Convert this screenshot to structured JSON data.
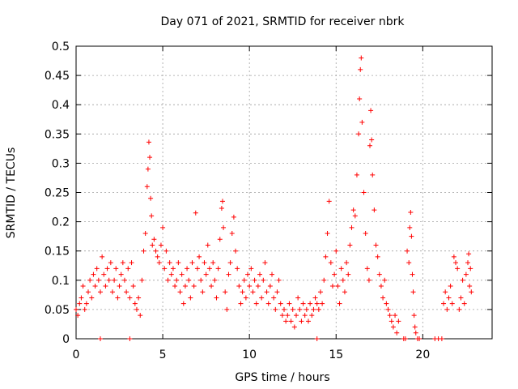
{
  "chart_data": {
    "type": "scatter",
    "title": "Day 071 of 2021, SRMTID for receiver nbrk",
    "xlabel": "GPS time / hours",
    "ylabel": "SRMTID / TECUs",
    "xlim": [
      0,
      24
    ],
    "ylim": [
      0,
      0.5
    ],
    "xticks": [
      0,
      5,
      10,
      15,
      20
    ],
    "xtick_labels": [
      "0",
      "5",
      "10",
      "15",
      "20"
    ],
    "yticks": [
      0,
      0.05,
      0.1,
      0.15,
      0.2,
      0.25,
      0.3,
      0.35,
      0.4,
      0.45,
      0.5
    ],
    "ytick_labels": [
      "0",
      "0.05",
      "0.1",
      "0.15",
      "0.2",
      "0.25",
      "0.3",
      "0.35",
      "0.4",
      "0.45",
      "0.5"
    ],
    "grid": true,
    "marker": "+",
    "color": "#ff0000",
    "series": [
      {
        "name": "SRMTID",
        "points": [
          [
            0.0,
            0.05
          ],
          [
            0.1,
            0.04
          ],
          [
            0.2,
            0.06
          ],
          [
            0.3,
            0.07
          ],
          [
            0.4,
            0.09
          ],
          [
            0.5,
            0.05
          ],
          [
            0.6,
            0.06
          ],
          [
            0.7,
            0.08
          ],
          [
            0.8,
            0.1
          ],
          [
            0.9,
            0.07
          ],
          [
            1.0,
            0.11
          ],
          [
            1.1,
            0.09
          ],
          [
            1.2,
            0.12
          ],
          [
            1.3,
            0.1
          ],
          [
            1.4,
            0.08
          ],
          [
            1.5,
            0.14
          ],
          [
            1.6,
            0.11
          ],
          [
            1.7,
            0.09
          ],
          [
            1.8,
            0.12
          ],
          [
            1.9,
            0.1
          ],
          [
            2.0,
            0.13
          ],
          [
            2.1,
            0.08
          ],
          [
            2.2,
            0.1
          ],
          [
            2.3,
            0.12
          ],
          [
            2.4,
            0.07
          ],
          [
            2.5,
            0.09
          ],
          [
            2.6,
            0.11
          ],
          [
            2.7,
            0.13
          ],
          [
            2.8,
            0.1
          ],
          [
            2.9,
            0.08
          ],
          [
            3.0,
            0.12
          ],
          [
            3.1,
            0.07
          ],
          [
            3.2,
            0.13
          ],
          [
            3.3,
            0.09
          ],
          [
            3.4,
            0.06
          ],
          [
            3.5,
            0.05
          ],
          [
            3.6,
            0.07
          ],
          [
            3.7,
            0.04
          ],
          [
            3.8,
            0.1
          ],
          [
            3.9,
            0.15
          ],
          [
            4.0,
            0.18
          ],
          [
            4.1,
            0.26
          ],
          [
            4.15,
            0.29
          ],
          [
            4.2,
            0.336
          ],
          [
            4.25,
            0.31
          ],
          [
            4.3,
            0.24
          ],
          [
            4.35,
            0.21
          ],
          [
            4.4,
            0.16
          ],
          [
            4.5,
            0.17
          ],
          [
            4.6,
            0.15
          ],
          [
            4.7,
            0.14
          ],
          [
            4.8,
            0.13
          ],
          [
            4.9,
            0.16
          ],
          [
            5.0,
            0.19
          ],
          [
            5.1,
            0.12
          ],
          [
            5.2,
            0.15
          ],
          [
            5.3,
            0.1
          ],
          [
            5.4,
            0.13
          ],
          [
            5.5,
            0.11
          ],
          [
            5.6,
            0.12
          ],
          [
            5.7,
            0.09
          ],
          [
            5.8,
            0.1
          ],
          [
            5.9,
            0.13
          ],
          [
            6.0,
            0.08
          ],
          [
            6.1,
            0.11
          ],
          [
            6.2,
            0.06
          ],
          [
            6.3,
            0.09
          ],
          [
            6.4,
            0.12
          ],
          [
            6.5,
            0.1
          ],
          [
            6.6,
            0.07
          ],
          [
            6.7,
            0.13
          ],
          [
            6.8,
            0.09
          ],
          [
            6.9,
            0.215
          ],
          [
            7.0,
            0.12
          ],
          [
            7.1,
            0.14
          ],
          [
            7.2,
            0.1
          ],
          [
            7.3,
            0.08
          ],
          [
            7.4,
            0.13
          ],
          [
            7.5,
            0.11
          ],
          [
            7.6,
            0.16
          ],
          [
            7.7,
            0.12
          ],
          [
            7.8,
            0.09
          ],
          [
            7.9,
            0.13
          ],
          [
            8.0,
            0.1
          ],
          [
            8.1,
            0.07
          ],
          [
            8.2,
            0.12
          ],
          [
            8.3,
            0.17
          ],
          [
            8.4,
            0.223
          ],
          [
            8.45,
            0.235
          ],
          [
            8.5,
            0.19
          ],
          [
            8.6,
            0.08
          ],
          [
            8.7,
            0.05
          ],
          [
            8.8,
            0.11
          ],
          [
            8.9,
            0.13
          ],
          [
            9.0,
            0.18
          ],
          [
            9.1,
            0.208
          ],
          [
            9.2,
            0.15
          ],
          [
            9.3,
            0.12
          ],
          [
            9.4,
            0.09
          ],
          [
            9.5,
            0.06
          ],
          [
            9.6,
            0.08
          ],
          [
            9.7,
            0.1
          ],
          [
            9.8,
            0.07
          ],
          [
            9.9,
            0.11
          ],
          [
            10.0,
            0.09
          ],
          [
            10.1,
            0.12
          ],
          [
            10.2,
            0.08
          ],
          [
            10.3,
            0.1
          ],
          [
            10.4,
            0.06
          ],
          [
            10.5,
            0.09
          ],
          [
            10.6,
            0.11
          ],
          [
            10.7,
            0.07
          ],
          [
            10.8,
            0.1
          ],
          [
            10.9,
            0.13
          ],
          [
            11.0,
            0.08
          ],
          [
            11.1,
            0.06
          ],
          [
            11.2,
            0.09
          ],
          [
            11.3,
            0.11
          ],
          [
            11.4,
            0.07
          ],
          [
            11.5,
            0.05
          ],
          [
            11.6,
            0.08
          ],
          [
            11.7,
            0.1
          ],
          [
            11.8,
            0.06
          ],
          [
            11.9,
            0.04
          ],
          [
            12.0,
            0.05
          ],
          [
            12.1,
            0.03
          ],
          [
            12.2,
            0.04
          ],
          [
            12.3,
            0.06
          ],
          [
            12.4,
            0.03
          ],
          [
            12.5,
            0.05
          ],
          [
            12.6,
            0.02
          ],
          [
            12.7,
            0.04
          ],
          [
            12.8,
            0.07
          ],
          [
            12.9,
            0.05
          ],
          [
            13.0,
            0.03
          ],
          [
            13.1,
            0.06
          ],
          [
            13.2,
            0.04
          ],
          [
            13.3,
            0.05
          ],
          [
            13.4,
            0.03
          ],
          [
            13.5,
            0.06
          ],
          [
            13.6,
            0.04
          ],
          [
            13.7,
            0.05
          ],
          [
            13.8,
            0.07
          ],
          [
            13.9,
            0.06
          ],
          [
            14.0,
            0.05
          ],
          [
            14.1,
            0.08
          ],
          [
            14.2,
            0.06
          ],
          [
            14.3,
            0.1
          ],
          [
            14.4,
            0.14
          ],
          [
            14.5,
            0.18
          ],
          [
            14.6,
            0.235
          ],
          [
            14.7,
            0.13
          ],
          [
            14.8,
            0.09
          ],
          [
            14.9,
            0.11
          ],
          [
            15.0,
            0.15
          ],
          [
            15.1,
            0.09
          ],
          [
            15.2,
            0.06
          ],
          [
            15.3,
            0.12
          ],
          [
            15.4,
            0.1
          ],
          [
            15.5,
            0.08
          ],
          [
            15.6,
            0.13
          ],
          [
            15.7,
            0.11
          ],
          [
            15.8,
            0.16
          ],
          [
            15.9,
            0.19
          ],
          [
            16.0,
            0.22
          ],
          [
            16.1,
            0.21
          ],
          [
            16.2,
            0.28
          ],
          [
            16.3,
            0.35
          ],
          [
            16.35,
            0.41
          ],
          [
            16.4,
            0.46
          ],
          [
            16.45,
            0.48
          ],
          [
            16.5,
            0.37
          ],
          [
            16.6,
            0.25
          ],
          [
            16.7,
            0.18
          ],
          [
            16.8,
            0.12
          ],
          [
            16.9,
            0.1
          ],
          [
            16.95,
            0.33
          ],
          [
            17.0,
            0.39
          ],
          [
            17.05,
            0.34
          ],
          [
            17.1,
            0.28
          ],
          [
            17.2,
            0.22
          ],
          [
            17.3,
            0.16
          ],
          [
            17.4,
            0.14
          ],
          [
            17.5,
            0.11
          ],
          [
            17.6,
            0.09
          ],
          [
            17.7,
            0.07
          ],
          [
            17.8,
            0.1
          ],
          [
            17.9,
            0.06
          ],
          [
            18.0,
            0.05
          ],
          [
            18.1,
            0.04
          ],
          [
            18.2,
            0.03
          ],
          [
            18.3,
            0.02
          ],
          [
            18.4,
            0.04
          ],
          [
            18.5,
            0.01
          ],
          [
            18.6,
            0.03
          ],
          [
            19.0,
            0.0
          ],
          [
            19.1,
            0.15
          ],
          [
            19.2,
            0.13
          ],
          [
            19.25,
            0.19
          ],
          [
            19.3,
            0.216
          ],
          [
            19.35,
            0.175
          ],
          [
            19.4,
            0.11
          ],
          [
            19.45,
            0.08
          ],
          [
            19.5,
            0.04
          ],
          [
            19.55,
            0.02
          ],
          [
            19.6,
            0.01
          ],
          [
            19.7,
            0.0
          ],
          [
            19.8,
            0.0
          ],
          [
            20.7,
            0.0
          ],
          [
            20.9,
            0.0
          ],
          [
            21.1,
            0.0
          ],
          [
            21.2,
            0.06
          ],
          [
            21.3,
            0.08
          ],
          [
            21.4,
            0.05
          ],
          [
            21.5,
            0.07
          ],
          [
            21.6,
            0.09
          ],
          [
            21.7,
            0.06
          ],
          [
            21.8,
            0.14
          ],
          [
            21.9,
            0.13
          ],
          [
            22.0,
            0.12
          ],
          [
            22.1,
            0.05
          ],
          [
            22.2,
            0.07
          ],
          [
            22.3,
            0.1
          ],
          [
            22.4,
            0.06
          ],
          [
            22.5,
            0.11
          ],
          [
            22.6,
            0.13
          ],
          [
            22.65,
            0.145
          ],
          [
            22.7,
            0.09
          ],
          [
            22.75,
            0.12
          ],
          [
            22.8,
            0.08
          ],
          [
            1.4,
            0.0
          ],
          [
            3.1,
            0.0
          ],
          [
            13.9,
            0.0
          ],
          [
            18.9,
            0.0
          ]
        ]
      }
    ]
  }
}
